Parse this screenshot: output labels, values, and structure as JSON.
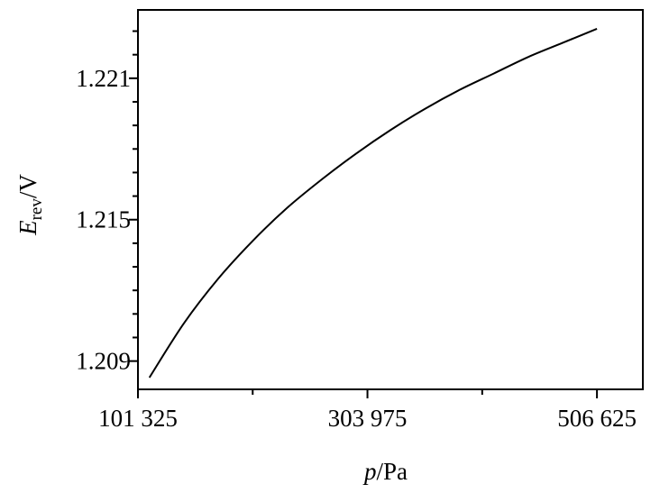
{
  "chart_data": {
    "type": "line",
    "xlabel": {
      "italic": "p",
      "rest": "/Pa"
    },
    "ylabel": {
      "italic": "E",
      "sub": "rev",
      "rest": "/V"
    },
    "xlim": [
      101325,
      547155
    ],
    "ylim": [
      1.2078,
      1.2239
    ],
    "xticks_labeled": [
      101325,
      303975,
      506625
    ],
    "xtick_labels": [
      "101 325",
      "303 975",
      "506 625"
    ],
    "xticks_minor": [
      202650,
      405300
    ],
    "yticks_labeled": [
      1.209,
      1.215,
      1.221
    ],
    "ytick_labels": [
      "1.209",
      "1.215",
      "1.221"
    ],
    "yticks_minor": [
      1.21,
      1.211,
      1.212,
      1.213,
      1.214,
      1.216,
      1.217,
      1.218,
      1.219,
      1.22,
      1.222,
      1.223
    ],
    "grid": false,
    "series": [
      {
        "color": "#000000",
        "x": [
          111458,
          141855,
          172253,
          202650,
          233048,
          263445,
          293843,
          324240,
          354638,
          385035,
          415433,
          445830,
          476228,
          506625
        ],
        "y": [
          1.2083,
          1.2106,
          1.2125,
          1.2141,
          1.2155,
          1.2167,
          1.2178,
          1.2188,
          1.2197,
          1.2205,
          1.2212,
          1.2219,
          1.2225,
          1.2231
        ]
      }
    ]
  }
}
